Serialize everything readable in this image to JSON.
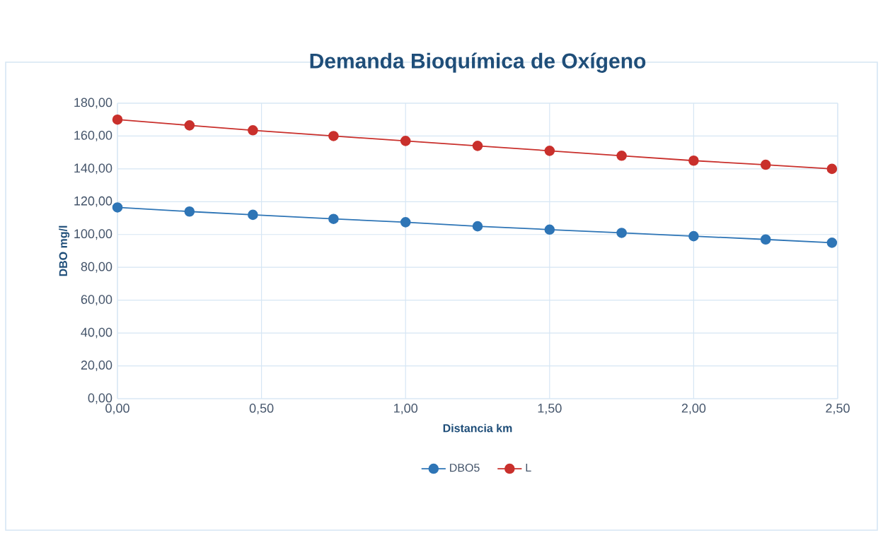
{
  "chart_data": {
    "type": "line",
    "title": "Demanda Bioquímica de Oxígeno",
    "xlabel": "Distancia km",
    "ylabel": "DBO mg/l",
    "x": [
      0,
      0.25,
      0.47,
      0.75,
      1.0,
      1.25,
      1.5,
      1.75,
      2.0,
      2.25,
      2.48
    ],
    "series": [
      {
        "name": "DBO5",
        "color": "#2e75b6",
        "values": [
          116.5,
          114,
          112,
          109.5,
          107.5,
          105,
          103,
          101,
          99,
          97,
          95
        ]
      },
      {
        "name": "L",
        "color": "#c9302c",
        "values": [
          170,
          166.5,
          163.5,
          160,
          157,
          154,
          151,
          148,
          145,
          142.5,
          140
        ]
      }
    ],
    "xlim": [
      0,
      2.5
    ],
    "ylim": [
      0,
      180
    ],
    "xticks": [
      {
        "value": 0,
        "label": "0,00"
      },
      {
        "value": 0.5,
        "label": "0,50"
      },
      {
        "value": 1,
        "label": "1,00"
      },
      {
        "value": 1.5,
        "label": "1,50"
      },
      {
        "value": 2,
        "label": "2,00"
      },
      {
        "value": 2.5,
        "label": "2,50"
      }
    ],
    "yticks": [
      {
        "value": 0,
        "label": "0,00"
      },
      {
        "value": 20,
        "label": "20,00"
      },
      {
        "value": 40,
        "label": "40,00"
      },
      {
        "value": 60,
        "label": "60,00"
      },
      {
        "value": 80,
        "label": "80,00"
      },
      {
        "value": 100,
        "label": "100,00"
      },
      {
        "value": 120,
        "label": "120,00"
      },
      {
        "value": 140,
        "label": "140,00"
      },
      {
        "value": 160,
        "label": "160,00"
      },
      {
        "value": 180,
        "label": "180,00"
      }
    ],
    "grid": true,
    "legend": "bottom",
    "marker": "circle",
    "line_style": "solid"
  }
}
